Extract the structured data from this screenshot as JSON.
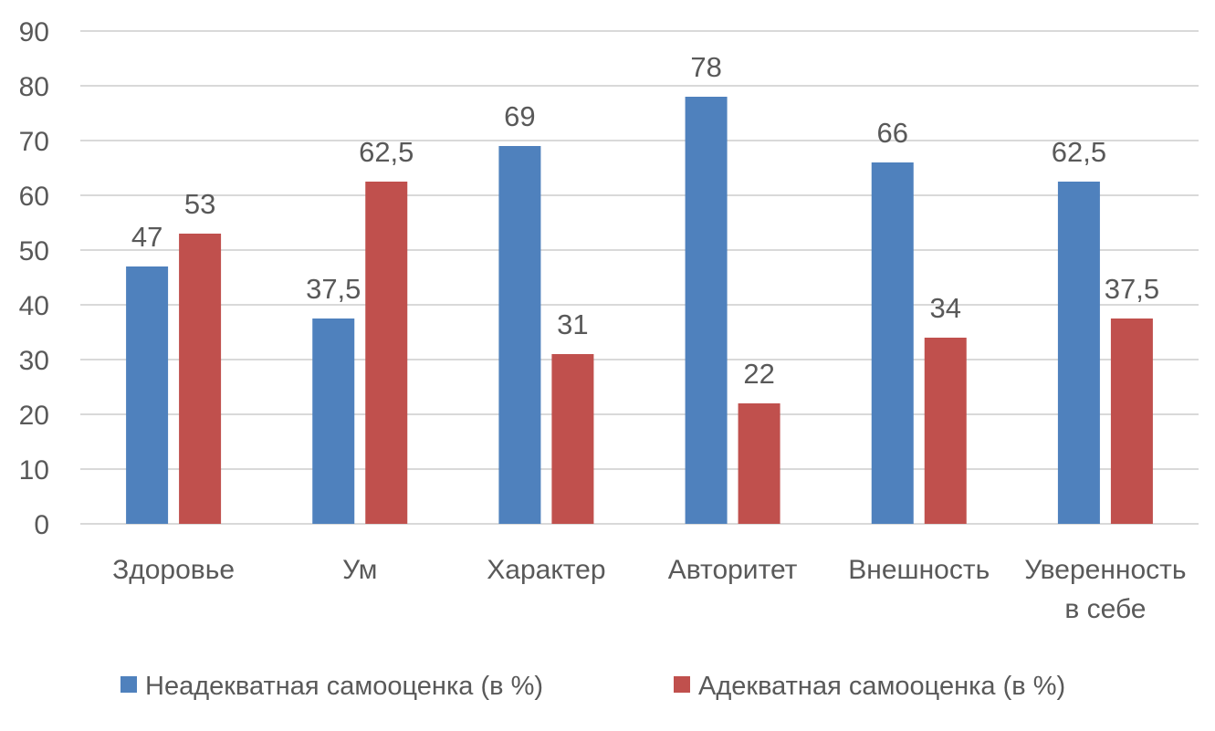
{
  "chart_data": {
    "type": "bar",
    "categories": [
      "Здоровье",
      "Ум",
      "Характер",
      "Авторитет",
      "Внешность",
      "Уверенность в себе"
    ],
    "category_lines": [
      [
        "Здоровье"
      ],
      [
        "Ум"
      ],
      [
        "Характер"
      ],
      [
        "Авторитет"
      ],
      [
        "Внешность"
      ],
      [
        "Уверенность",
        "в себе"
      ]
    ],
    "series": [
      {
        "name": "Неадекватная самооценка (в %)",
        "color": "#4f81bd",
        "values": [
          47,
          37.5,
          69,
          78,
          66,
          62.5
        ],
        "labels": [
          "47",
          "37,5",
          "69",
          "78",
          "66",
          "62,5"
        ]
      },
      {
        "name": "Адекватная самооценка (в %)",
        "color": "#c0504d",
        "values": [
          53,
          62.5,
          31,
          22,
          34,
          37.5
        ],
        "labels": [
          "53",
          "62,5",
          "31",
          "22",
          "34",
          "37,5"
        ]
      }
    ],
    "title": "",
    "xlabel": "",
    "ylabel": "",
    "ylim": [
      0,
      90
    ],
    "yticks": [
      0,
      10,
      20,
      30,
      40,
      50,
      60,
      70,
      80,
      90
    ],
    "grid": true,
    "legend": "bottom"
  },
  "colors": {
    "grid": "#d9d9d9",
    "text": "#595959"
  }
}
